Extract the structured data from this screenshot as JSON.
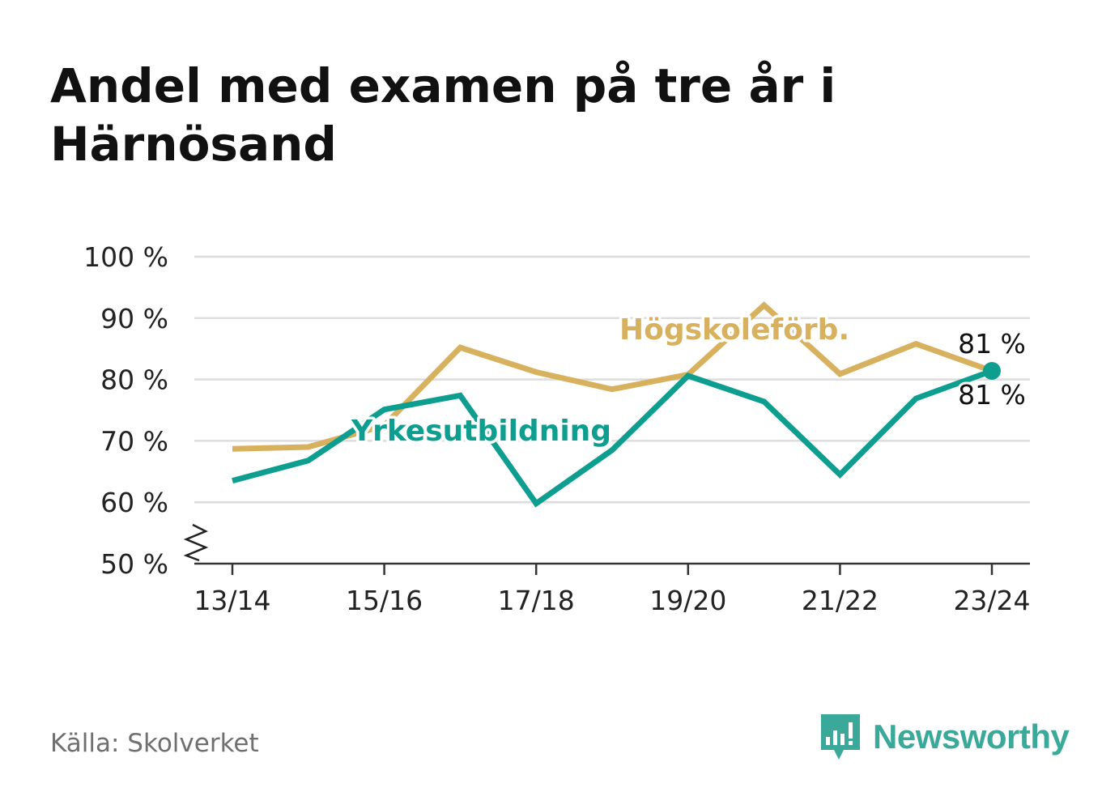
{
  "title": "Andel med examen på tre år i Härnösand",
  "source": "Källa: Skolverket",
  "brand": {
    "name": "Newsworthy",
    "icon": "newsworthy-logo-icon",
    "color": "#3aa99a"
  },
  "chart_data": {
    "type": "line",
    "x": [
      "13/14",
      "14/15",
      "15/16",
      "16/17",
      "17/18",
      "18/19",
      "19/20",
      "20/21",
      "21/22",
      "22/23",
      "23/24"
    ],
    "x_tick_labels": [
      "13/14",
      "15/16",
      "17/18",
      "19/20",
      "21/22",
      "23/24"
    ],
    "y_tick_labels": [
      "50 %",
      "60 %",
      "70 %",
      "80 %",
      "90 %",
      "100 %"
    ],
    "ylim": [
      50,
      100
    ],
    "y_axis_break": true,
    "grid": true,
    "series": [
      {
        "name": "Högskoleförb.",
        "color": "#d8b15f",
        "values": [
          68.7,
          69.0,
          72.5,
          85.2,
          81.2,
          78.4,
          80.8,
          92.1,
          80.9,
          85.8,
          81.4
        ]
      },
      {
        "name": "Yrkesutbildning",
        "color": "#0d9e90",
        "values": [
          63.5,
          66.8,
          75.1,
          77.4,
          59.8,
          68.5,
          80.6,
          76.4,
          64.5,
          76.9,
          81.4
        ]
      }
    ],
    "end_labels": [
      "81 %",
      "81 %"
    ]
  }
}
